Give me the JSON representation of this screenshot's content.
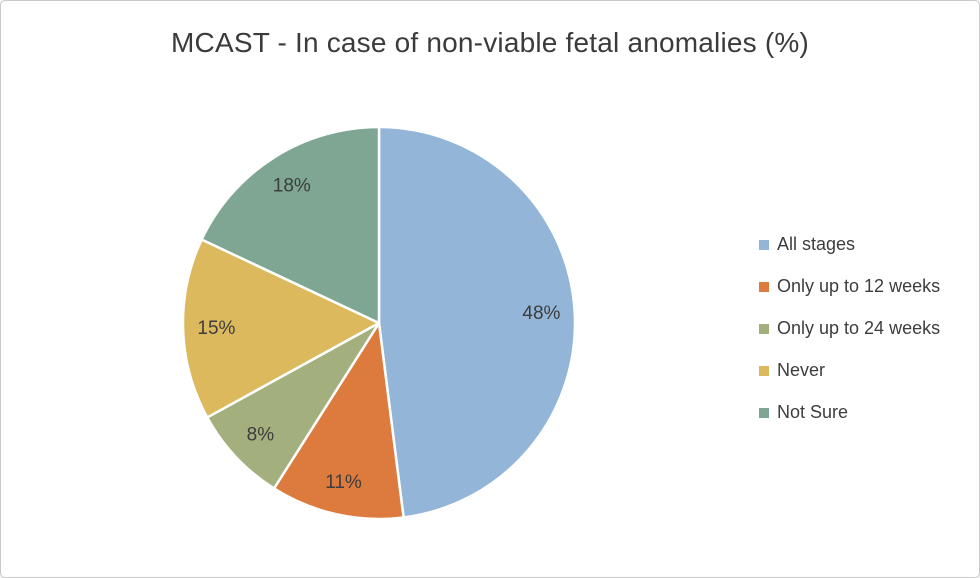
{
  "page": {
    "title": "MCAST - In case of non-viable fetal anomalies (%)"
  },
  "chart_data": {
    "type": "pie",
    "title": "MCAST - In case of non-viable fetal anomalies (%)",
    "categories": [
      "All stages",
      "Only up to 12 weeks",
      "Only up to 24 weeks",
      "Never",
      "Not Sure"
    ],
    "values": [
      48,
      11,
      8,
      15,
      18
    ],
    "data_labels": [
      "48%",
      "11%",
      "8%",
      "15%",
      "18%"
    ],
    "colors": [
      "#92B5D8",
      "#DC7B3D",
      "#A4AF7E",
      "#DDB95D",
      "#7EA693"
    ],
    "start_angle_deg": 0,
    "direction": "clockwise",
    "legend_position": "right",
    "label_color": "#3d3d3d",
    "background_color": "#ffffff"
  }
}
